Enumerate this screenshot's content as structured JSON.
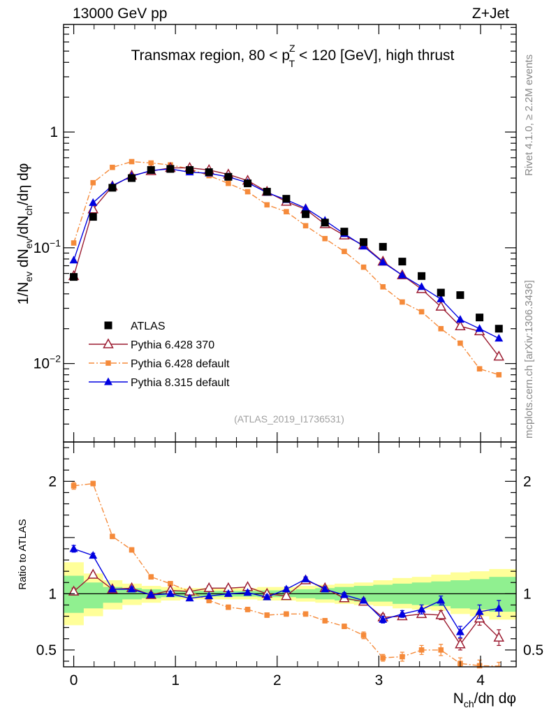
{
  "header": {
    "left": "13000 GeV pp",
    "right": "Z+Jet"
  },
  "side_labels": {
    "rivet": "Rivet 4.1.0, ≥ 2.2M events",
    "mcplots": "mcplots.cern.ch [arXiv:1306.3436]"
  },
  "chart_data": [
    {
      "type": "scatter",
      "title": "Transmax region, 80 < p_T^Z < 120 [GeV], high thrust",
      "title_parts": {
        "t1": "Transmax region, 80 < p",
        "sup": "Z",
        "sub": "T",
        "t2": " < 120 [GeV], high thrust"
      },
      "ylabel": "1/N_ev dN_ev/dN_ch/dη dφ",
      "ylabel_parts": {
        "a": "1/N",
        "s1": "ev",
        "b": " dN",
        "s2": "ev",
        "c": "/dN",
        "s3": "ch",
        "d": "/dη dφ"
      },
      "yscale": "log",
      "ylim": [
        0.0021,
        8.5
      ],
      "xlim": [
        -0.1,
        4.35
      ],
      "yticks": [
        {
          "value": 1,
          "label": "1"
        },
        {
          "value": 0.1,
          "label": "10",
          "exp": "−1"
        },
        {
          "value": 0.01,
          "label": "10",
          "exp": "−2"
        }
      ],
      "watermark": "(ATLAS_2019_I1736531)",
      "x": [
        0.0,
        0.19,
        0.38,
        0.57,
        0.76,
        0.95,
        1.14,
        1.33,
        1.52,
        1.71,
        1.9,
        2.09,
        2.28,
        2.47,
        2.66,
        2.85,
        3.04,
        3.23,
        3.42,
        3.61,
        3.8,
        3.99,
        4.18
      ],
      "legend_position": "lower-left",
      "series": [
        {
          "name": "ATLAS",
          "color": "#000000",
          "marker": "square",
          "values": [
            0.056,
            0.185,
            0.33,
            0.4,
            0.47,
            0.48,
            0.47,
            0.45,
            0.41,
            0.36,
            0.305,
            0.265,
            0.195,
            0.165,
            0.138,
            0.112,
            0.102,
            0.076,
            0.057,
            0.041,
            0.039,
            0.025,
            0.02
          ]
        },
        {
          "name": "Pythia 6.428 370",
          "color": "#9b1b30",
          "marker": "triangle-open",
          "line": "solid",
          "values": [
            0.057,
            0.215,
            0.34,
            0.42,
            0.46,
            0.49,
            0.49,
            0.47,
            0.43,
            0.38,
            0.305,
            0.25,
            0.215,
            0.16,
            0.128,
            0.105,
            0.076,
            0.058,
            0.044,
            0.031,
            0.021,
            0.019,
            0.0115
          ]
        },
        {
          "name": "Pythia 6.428 default",
          "color": "#f58a3a",
          "marker": "square-small",
          "line": "dashdot",
          "values": [
            0.11,
            0.365,
            0.495,
            0.555,
            0.54,
            0.52,
            0.48,
            0.42,
            0.36,
            0.305,
            0.235,
            0.205,
            0.155,
            0.12,
            0.093,
            0.068,
            0.046,
            0.034,
            0.028,
            0.02,
            0.015,
            0.009,
            0.008
          ]
        },
        {
          "name": "Pythia 8.315 default",
          "color": "#0000e0",
          "marker": "triangle",
          "line": "solid",
          "values": [
            0.078,
            0.245,
            0.345,
            0.415,
            0.465,
            0.48,
            0.45,
            0.44,
            0.41,
            0.365,
            0.3,
            0.26,
            0.22,
            0.172,
            0.132,
            0.103,
            0.075,
            0.058,
            0.046,
            0.036,
            0.024,
            0.02,
            0.0165
          ]
        }
      ]
    },
    {
      "type": "scatter",
      "title": "",
      "ylabel": "Ratio to ATLAS",
      "xlabel": "N_ch/dη dφ",
      "xlabel_parts": {
        "a": "N",
        "s": "ch",
        "b": "/dη dφ"
      },
      "ylim": [
        0.35,
        2.35
      ],
      "xlim": [
        -0.1,
        4.35
      ],
      "yticks": [
        {
          "value": 2,
          "label": "2"
        },
        {
          "value": 1,
          "label": "1"
        },
        {
          "value": 0.5,
          "label": "0.5"
        }
      ],
      "xticks": [
        {
          "value": 0,
          "label": "0"
        },
        {
          "value": 1,
          "label": "1"
        },
        {
          "value": 2,
          "label": "2"
        },
        {
          "value": 3,
          "label": "3"
        },
        {
          "value": 4,
          "label": "4"
        }
      ],
      "uncertainty_bands": {
        "edges": [
          -0.1,
          0.095,
          0.285,
          0.475,
          0.665,
          0.855,
          1.045,
          1.235,
          1.425,
          1.615,
          1.805,
          1.995,
          2.185,
          2.375,
          2.565,
          2.755,
          2.945,
          3.135,
          3.325,
          3.515,
          3.705,
          3.895,
          4.085,
          4.35
        ],
        "stat_color": "#90f090",
        "total_color": "#ffff99",
        "stat": [
          [
            0.83,
            1.16
          ],
          [
            0.87,
            1.1
          ],
          [
            0.92,
            1.06
          ],
          [
            0.95,
            1.05
          ],
          [
            0.96,
            1.04
          ],
          [
            0.97,
            1.03
          ],
          [
            0.975,
            1.025
          ],
          [
            0.975,
            1.025
          ],
          [
            0.975,
            1.025
          ],
          [
            0.975,
            1.025
          ],
          [
            0.97,
            1.03
          ],
          [
            0.97,
            1.03
          ],
          [
            0.96,
            1.04
          ],
          [
            0.95,
            1.05
          ],
          [
            0.94,
            1.06
          ],
          [
            0.93,
            1.07
          ],
          [
            0.93,
            1.08
          ],
          [
            0.91,
            1.09
          ],
          [
            0.9,
            1.1
          ],
          [
            0.89,
            1.11
          ],
          [
            0.87,
            1.12
          ],
          [
            0.86,
            1.13
          ],
          [
            0.84,
            1.15
          ]
        ],
        "total": [
          [
            0.72,
            1.28
          ],
          [
            0.8,
            1.18
          ],
          [
            0.86,
            1.12
          ],
          [
            0.9,
            1.09
          ],
          [
            0.92,
            1.07
          ],
          [
            0.94,
            1.06
          ],
          [
            0.95,
            1.05
          ],
          [
            0.95,
            1.05
          ],
          [
            0.95,
            1.05
          ],
          [
            0.95,
            1.05
          ],
          [
            0.94,
            1.06
          ],
          [
            0.94,
            1.06
          ],
          [
            0.93,
            1.07
          ],
          [
            0.92,
            1.08
          ],
          [
            0.91,
            1.09
          ],
          [
            0.9,
            1.1
          ],
          [
            0.89,
            1.12
          ],
          [
            0.87,
            1.14
          ],
          [
            0.86,
            1.15
          ],
          [
            0.85,
            1.17
          ],
          [
            0.82,
            1.19
          ],
          [
            0.8,
            1.2
          ],
          [
            0.77,
            1.22
          ]
        ]
      },
      "x": [
        0.0,
        0.19,
        0.38,
        0.57,
        0.76,
        0.95,
        1.14,
        1.33,
        1.52,
        1.71,
        1.9,
        2.09,
        2.28,
        2.47,
        2.66,
        2.85,
        3.04,
        3.23,
        3.42,
        3.61,
        3.8,
        3.99,
        4.18
      ],
      "series": [
        {
          "name": "Pythia 6.428 370",
          "color": "#9b1b30",
          "marker": "triangle-open",
          "line": "solid",
          "values": [
            1.02,
            1.17,
            1.04,
            1.05,
            0.99,
            1.03,
            1.02,
            1.05,
            1.05,
            1.06,
            1.0,
            0.98,
            1.12,
            1.05,
            0.96,
            0.93,
            0.79,
            0.8,
            0.82,
            0.81,
            0.55,
            0.78,
            0.61
          ],
          "errors": [
            0.03,
            0.02,
            0.02,
            0.02,
            0.02,
            0.02,
            0.02,
            0.02,
            0.02,
            0.02,
            0.02,
            0.02,
            0.02,
            0.02,
            0.02,
            0.02,
            0.03,
            0.03,
            0.03,
            0.04,
            0.05,
            0.06,
            0.07
          ]
        },
        {
          "name": "Pythia 6.428 default",
          "color": "#f58a3a",
          "marker": "square-small",
          "line": "dashdot",
          "values": [
            1.96,
            1.98,
            1.51,
            1.39,
            1.15,
            1.09,
            1.02,
            0.94,
            0.88,
            0.86,
            0.81,
            0.82,
            0.82,
            0.76,
            0.71,
            0.63,
            0.43,
            0.44,
            0.5,
            0.5,
            0.38,
            0.36,
            0.34
          ],
          "errors": [
            0.03,
            0.02,
            0.02,
            0.02,
            0.02,
            0.02,
            0.02,
            0.02,
            0.02,
            0.02,
            0.02,
            0.02,
            0.02,
            0.02,
            0.02,
            0.03,
            0.03,
            0.04,
            0.04,
            0.05,
            0.05,
            0.05,
            0.05
          ]
        },
        {
          "name": "Pythia 8.315 default",
          "color": "#0000e0",
          "marker": "triangle",
          "line": "solid",
          "values": [
            1.4,
            1.34,
            1.04,
            1.04,
            0.99,
            1.0,
            0.96,
            0.98,
            1.0,
            1.01,
            0.97,
            1.04,
            1.13,
            1.04,
            0.99,
            0.94,
            0.77,
            0.82,
            0.86,
            0.94,
            0.66,
            0.84,
            0.87
          ],
          "errors": [
            0.03,
            0.02,
            0.02,
            0.02,
            0.02,
            0.02,
            0.02,
            0.02,
            0.02,
            0.02,
            0.02,
            0.02,
            0.02,
            0.02,
            0.02,
            0.02,
            0.03,
            0.03,
            0.04,
            0.04,
            0.05,
            0.06,
            0.07
          ]
        }
      ]
    }
  ]
}
